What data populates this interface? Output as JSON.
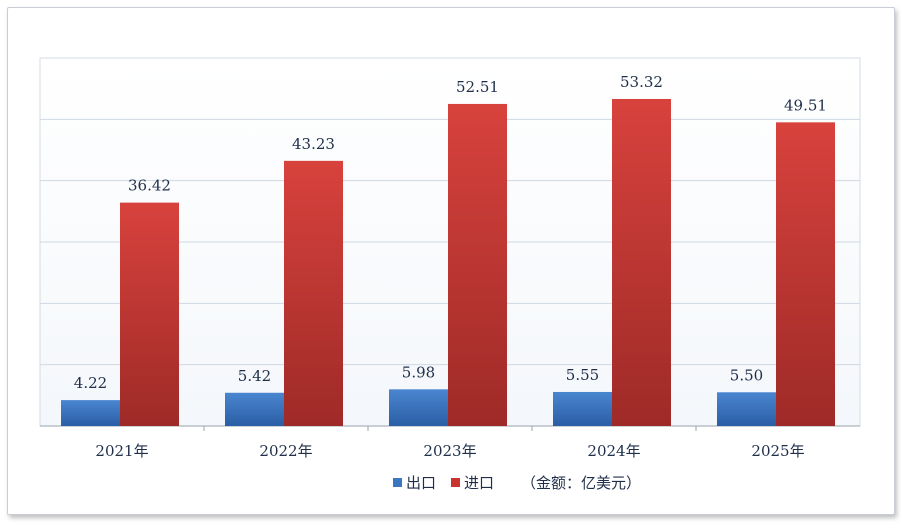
{
  "chart_data": {
    "type": "bar",
    "categories": [
      "2021年",
      "2022年",
      "2023年",
      "2024年",
      "2025年"
    ],
    "series": [
      {
        "name": "出口",
        "values": [
          4.22,
          5.42,
          5.98,
          5.55,
          5.5
        ],
        "color": "#3a76c2"
      },
      {
        "name": "进口",
        "values": [
          36.42,
          43.23,
          52.51,
          53.32,
          49.51
        ],
        "color": "#c9342f"
      }
    ],
    "unit_note": "（金额：亿美元）",
    "ylim": [
      0,
      60
    ],
    "grid": true,
    "legend_position": "bottom"
  }
}
